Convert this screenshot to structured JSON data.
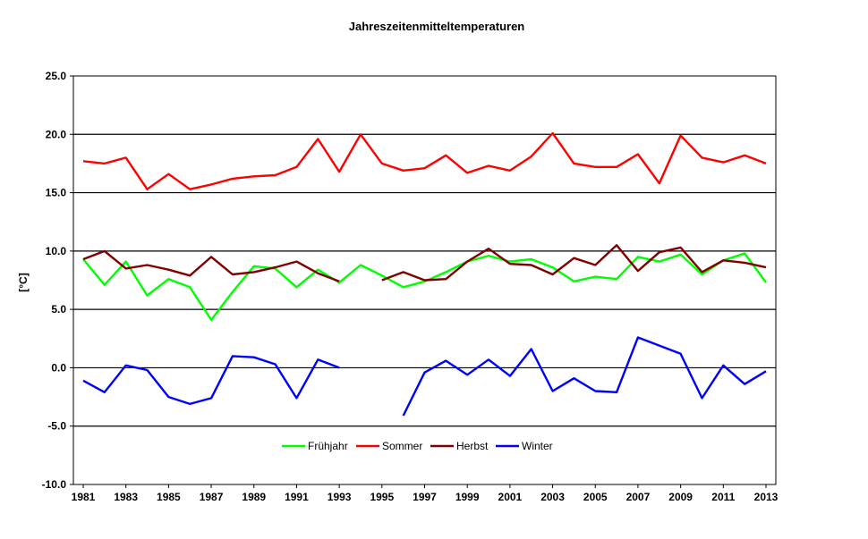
{
  "chart_data": {
    "type": "line",
    "title": "Jahreszeitenmitteltemperaturen",
    "xlabel": "",
    "ylabel": "[°C]",
    "ylim": [
      -10,
      25
    ],
    "yticks": [
      "25.0",
      "20.0",
      "15.0",
      "10.0",
      "5.0",
      "0.0",
      "-5.0",
      "-10.0"
    ],
    "ytick_values": [
      25,
      20,
      15,
      10,
      5,
      0,
      -5,
      -10
    ],
    "xlim": [
      1981,
      2013
    ],
    "xticks": [
      "1981",
      "1983",
      "1985",
      "1987",
      "1989",
      "1991",
      "1993",
      "1995",
      "1997",
      "1999",
      "2001",
      "2003",
      "2005",
      "2007",
      "2009",
      "2011",
      "2013"
    ],
    "xtick_values": [
      1981,
      1983,
      1985,
      1987,
      1989,
      1991,
      1993,
      1995,
      1997,
      1999,
      2001,
      2003,
      2005,
      2007,
      2009,
      2011,
      2013
    ],
    "grid": "horizontal",
    "legend": "bottom-center",
    "x": [
      1981,
      1982,
      1983,
      1984,
      1985,
      1986,
      1987,
      1988,
      1989,
      1990,
      1991,
      1992,
      1993,
      1994,
      1995,
      1996,
      1997,
      1998,
      1999,
      2000,
      2001,
      2002,
      2003,
      2004,
      2005,
      2006,
      2007,
      2008,
      2009,
      2010,
      2011,
      2012,
      2013
    ],
    "series": [
      {
        "name": "Frühjahr",
        "color": "#00ff00",
        "values": [
          9.3,
          7.1,
          9.1,
          6.2,
          7.6,
          6.9,
          4.1,
          6.5,
          8.7,
          8.5,
          6.9,
          8.4,
          7.3,
          8.8,
          7.9,
          6.9,
          7.4,
          8.2,
          9.1,
          9.6,
          9.1,
          9.3,
          8.6,
          7.4,
          7.8,
          7.6,
          9.5,
          9.1,
          9.7,
          8.0,
          9.2,
          9.8,
          7.3
        ]
      },
      {
        "name": "Sommer",
        "color": "#ff0000",
        "values": [
          17.7,
          17.5,
          18.0,
          15.3,
          16.6,
          15.3,
          15.7,
          16.2,
          16.4,
          16.5,
          17.2,
          19.6,
          16.8,
          20.0,
          17.5,
          16.9,
          17.1,
          18.2,
          16.7,
          17.3,
          16.9,
          18.1,
          20.1,
          17.5,
          17.2,
          17.2,
          18.3,
          15.8,
          19.9,
          18.0,
          17.6,
          18.2,
          17.5
        ]
      },
      {
        "name": "Herbst",
        "color": "#800000",
        "values": [
          9.3,
          10.0,
          8.5,
          8.8,
          8.4,
          7.9,
          9.5,
          8.0,
          8.2,
          8.6,
          9.1,
          8.1,
          7.4,
          null,
          7.5,
          8.2,
          7.5,
          7.6,
          9.1,
          10.2,
          8.9,
          8.8,
          8.0,
          9.4,
          8.8,
          10.5,
          8.3,
          9.9,
          10.3,
          8.2,
          9.2,
          9.0,
          8.6
        ]
      },
      {
        "name": "Winter",
        "color": "#0000ff",
        "values": [
          -1.1,
          -2.1,
          0.2,
          -0.2,
          -2.5,
          -3.1,
          -2.6,
          1.0,
          0.9,
          0.3,
          -2.6,
          0.7,
          0.0,
          null,
          null,
          -4.1,
          -0.4,
          0.6,
          -0.6,
          0.7,
          -0.7,
          1.6,
          -2.0,
          -0.9,
          -2.0,
          -2.1,
          2.6,
          1.9,
          1.2,
          -2.6,
          0.2,
          -1.4,
          -0.3
        ]
      }
    ]
  }
}
